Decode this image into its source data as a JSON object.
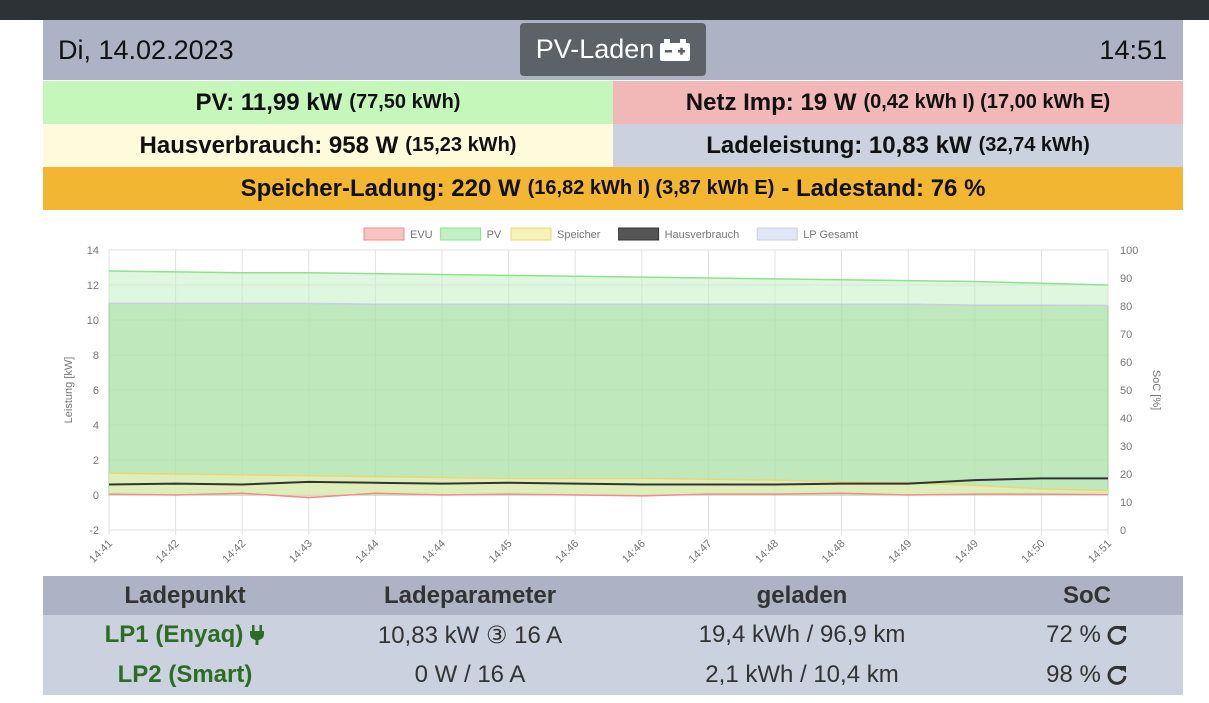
{
  "header": {
    "date": "Di, 14.02.2023",
    "mode_label": "PV-Laden",
    "mode_icon": "battery-plus-icon",
    "time": "14:51"
  },
  "summary": {
    "pv_main": "PV: 11,99 kW",
    "pv_small": "(77,50 kWh)",
    "evu_main": "Netz Imp: 19 W",
    "evu_small": "(0,42 kWh I) (17,00 kWh E)",
    "house_main": "Hausverbrauch: 958 W",
    "house_small": "(15,23 kWh)",
    "lp_main": "Ladeleistung: 10,83 kW",
    "lp_small": "(32,74 kWh)",
    "speicher_main": "Speicher-Ladung: 220 W",
    "speicher_small": "(16,82 kWh I) (3,87 kWh E)",
    "speicher_soc": "- Ladestand: 76 %"
  },
  "colors": {
    "pv_bg": "#c4f7b9",
    "evu_bg": "#f2b8b8",
    "house_bg": "#fefbdc",
    "lp_bg": "#ccd1e0",
    "speicher_bg": "#f2b632",
    "header_bg": "#adb3c4",
    "lp_name": "#2b6d22"
  },
  "chart_data": {
    "type": "area",
    "ylabel": "Leistung [kW]",
    "y2label": "SoC [%]",
    "ylim": [
      -2,
      14
    ],
    "y2lim": [
      0,
      100
    ],
    "yticks": [
      "-2",
      "0",
      "2",
      "4",
      "6",
      "8",
      "10",
      "12",
      "14"
    ],
    "y2ticks": [
      "0",
      "10",
      "20",
      "30",
      "40",
      "50",
      "60",
      "70",
      "80",
      "90",
      "100"
    ],
    "grid": true,
    "legend_position": "top-center",
    "x": [
      "14:41",
      "14:42",
      "14:42",
      "14:43",
      "14:44",
      "14:44",
      "14:45",
      "14:46",
      "14:46",
      "14:47",
      "14:48",
      "14:48",
      "14:49",
      "14:49",
      "14:50",
      "14:51"
    ],
    "series": [
      {
        "name": "EVU",
        "color": "#f28b8b",
        "fill": "#f7c3c3",
        "values": [
          0.05,
          0.0,
          0.1,
          -0.15,
          0.1,
          0.0,
          0.05,
          0.0,
          -0.05,
          0.05,
          0.05,
          0.1,
          0.0,
          0.05,
          0.05,
          0.02
        ]
      },
      {
        "name": "PV",
        "color": "#8ee28e",
        "fill": "#c2f0c2",
        "values": [
          12.8,
          12.75,
          12.7,
          12.7,
          12.65,
          12.6,
          12.55,
          12.5,
          12.45,
          12.4,
          12.35,
          12.3,
          12.25,
          12.2,
          12.1,
          12.0
        ]
      },
      {
        "name": "Speicher",
        "color": "#e8d67a",
        "fill": "#f7f2b8",
        "values": [
          1.25,
          1.2,
          1.15,
          1.1,
          1.05,
          1.0,
          0.95,
          0.95,
          0.95,
          0.9,
          0.85,
          0.75,
          0.7,
          0.55,
          0.35,
          0.25
        ]
      },
      {
        "name": "Hausverbrauch",
        "color": "#333333",
        "fill": "#555555",
        "values": [
          0.6,
          0.65,
          0.6,
          0.75,
          0.7,
          0.65,
          0.7,
          0.65,
          0.6,
          0.6,
          0.6,
          0.65,
          0.65,
          0.85,
          0.95,
          0.95
        ]
      },
      {
        "name": "LP Gesamt",
        "color": "#c9cde8",
        "fill": "#e1e5f5",
        "values": [
          10.95,
          10.95,
          10.95,
          10.95,
          10.9,
          10.9,
          10.9,
          10.9,
          10.9,
          10.9,
          10.9,
          10.9,
          10.9,
          10.85,
          10.85,
          10.83
        ]
      }
    ]
  },
  "table": {
    "headers": [
      "Ladepunkt",
      "Ladeparameter",
      "geladen",
      "SoC"
    ],
    "rows": [
      {
        "name": "LP1 (Enyaq)",
        "name_icon": "plug-icon",
        "param": "10,83 kW ③ 16 A",
        "charged": "19,4 kWh / 96,9 km",
        "soc": "72 %",
        "soc_icon": "refresh-icon"
      },
      {
        "name": "LP2 (Smart)",
        "param": "0 W / 16 A",
        "charged": "2,1 kWh / 10,4 km",
        "soc": "98 %",
        "soc_icon": "refresh-icon"
      }
    ]
  }
}
